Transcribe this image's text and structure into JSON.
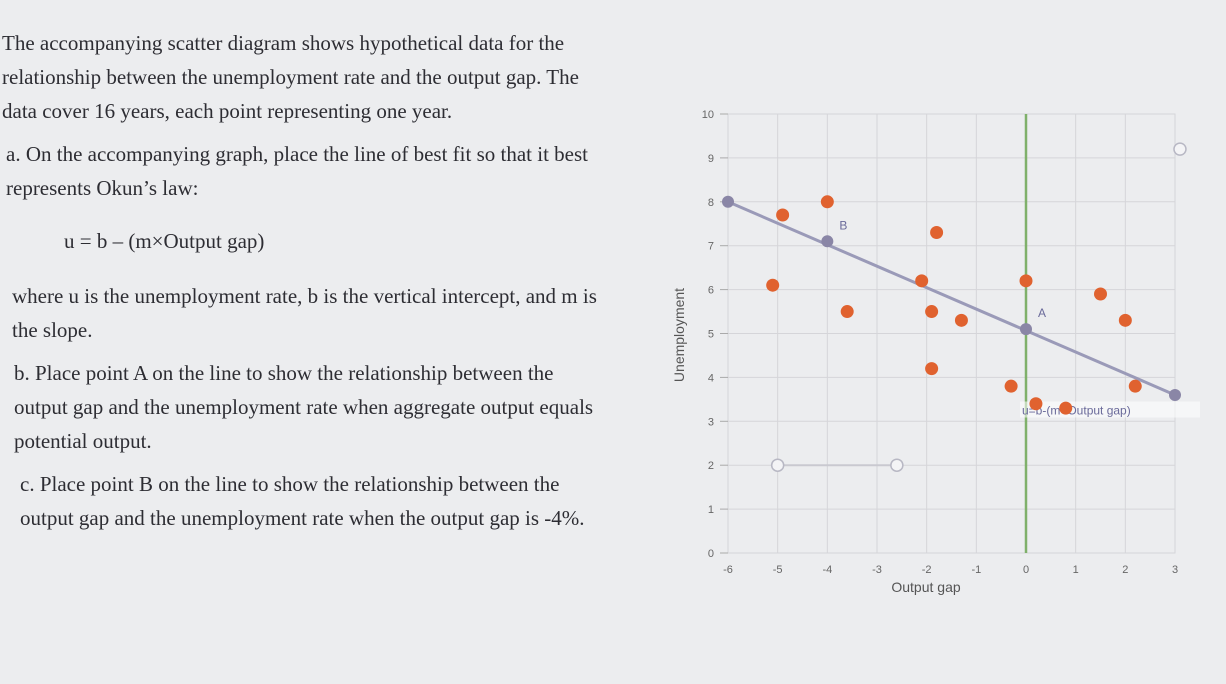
{
  "question": {
    "intro": "The accompanying scatter diagram shows hypothetical data for the relationship between the unemployment rate and the output gap. The data cover 16 years, each point representing one year.",
    "part_a": "a. On the accompanying graph, place the line of best fit so that it best represents Okun’s law:",
    "formula": "u = b – (m×Output gap)",
    "where": "where u is the unemployment rate, b is the vertical intercept, and m is the slope.",
    "part_b": "b. Place point A on the line to show the relationship between the output gap and the unemployment rate when aggregate output equals potential output.",
    "part_c": "c. Place point B on the line to show the relationship between the output gap and the unemployment rate when the output gap is -4%."
  },
  "chart_data": {
    "type": "scatter",
    "xlabel": "Output gap",
    "ylabel": "Unemployment",
    "xlim": [
      -6,
      3
    ],
    "ylim": [
      0,
      10
    ],
    "x_ticks": [
      "-6",
      "-5",
      "-4",
      "-3",
      "-2",
      "-1",
      "0",
      "1",
      "2",
      "3"
    ],
    "y_ticks": [
      "0",
      "1",
      "2",
      "3",
      "4",
      "5",
      "6",
      "7",
      "8",
      "9",
      "10"
    ],
    "grid": true,
    "points": [
      {
        "x": -5.1,
        "y": 6.1
      },
      {
        "x": -4.9,
        "y": 7.7
      },
      {
        "x": -4.0,
        "y": 8.0
      },
      {
        "x": -3.6,
        "y": 5.5
      },
      {
        "x": -2.1,
        "y": 6.2
      },
      {
        "x": -1.8,
        "y": 7.3
      },
      {
        "x": -1.9,
        "y": 5.5
      },
      {
        "x": -1.9,
        "y": 4.2
      },
      {
        "x": -1.3,
        "y": 5.3
      },
      {
        "x": -0.3,
        "y": 3.8
      },
      {
        "x": 0.0,
        "y": 6.2
      },
      {
        "x": 0.2,
        "y": 3.4
      },
      {
        "x": 0.8,
        "y": 3.3
      },
      {
        "x": 1.5,
        "y": 5.9
      },
      {
        "x": 2.0,
        "y": 5.3
      },
      {
        "x": 2.2,
        "y": 3.8
      }
    ],
    "best_fit_line": {
      "x1": -6,
      "y1": 8.0,
      "x2": 3,
      "y2": 3.6,
      "label": "u=b-(m×Output gap)"
    },
    "labeled_points": [
      {
        "label": "A",
        "x": 0,
        "y": 5.1
      },
      {
        "label": "B",
        "x": -4,
        "y": 7.1
      }
    ],
    "vertical_line_x": 0,
    "tool_handles": [
      {
        "x": -5.0,
        "y": 2.0
      },
      {
        "x": -2.6,
        "y": 2.0
      },
      {
        "x": 3.1,
        "y": 9.2
      }
    ],
    "colors": {
      "point": "#e0622f",
      "line": "#9a9ab8",
      "handle": "#8a86a6",
      "vertical_line": "#7fb06a",
      "grid": "#d5d5d9"
    }
  }
}
